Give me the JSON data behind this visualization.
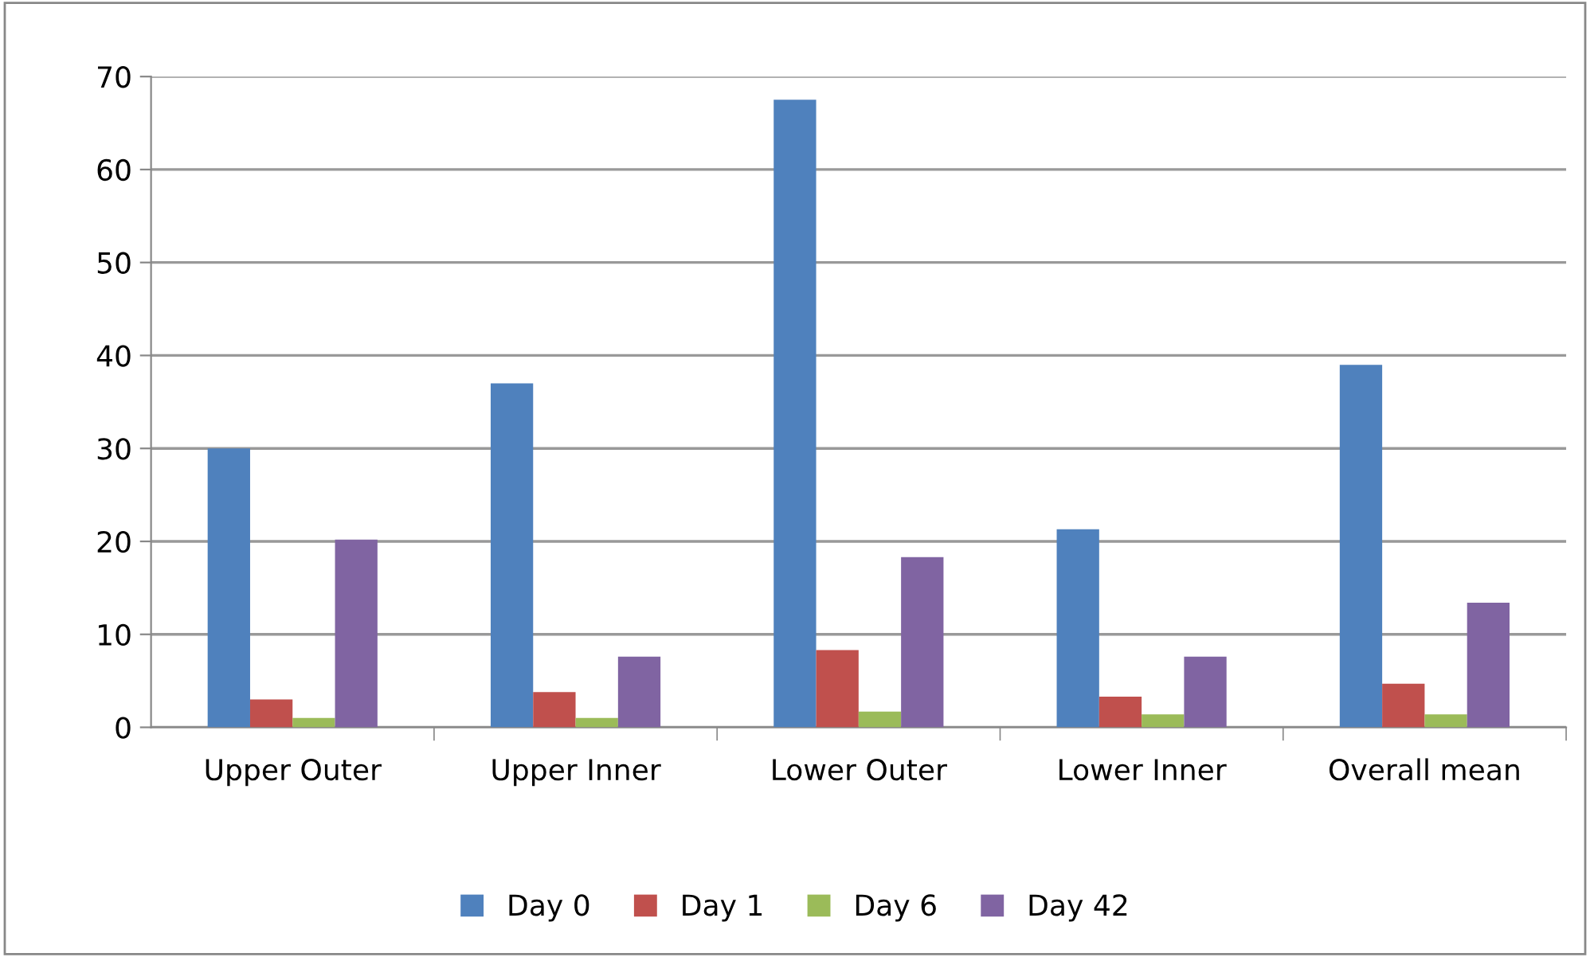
{
  "chart_data": {
    "type": "bar",
    "categories": [
      "Upper Outer",
      "Upper Inner",
      "Lower Outer",
      "Lower Inner",
      "Overall mean"
    ],
    "series": [
      {
        "name": "Day 0",
        "color": "#4f81bd",
        "values": [
          30.0,
          37.0,
          67.5,
          21.3,
          39.0
        ]
      },
      {
        "name": "Day 1",
        "color": "#c0504d",
        "values": [
          3.0,
          3.8,
          8.3,
          3.3,
          4.7
        ]
      },
      {
        "name": "Day 6",
        "color": "#9bbb59",
        "values": [
          1.0,
          1.0,
          1.7,
          1.4,
          1.4
        ]
      },
      {
        "name": "Day 42",
        "color": "#8064a2",
        "values": [
          20.2,
          7.6,
          18.3,
          7.6,
          13.4
        ]
      }
    ],
    "ylim": [
      0,
      70
    ],
    "yticks": [
      0,
      10,
      20,
      30,
      40,
      50,
      60,
      70
    ],
    "grid": "y",
    "legend": "bottom"
  }
}
